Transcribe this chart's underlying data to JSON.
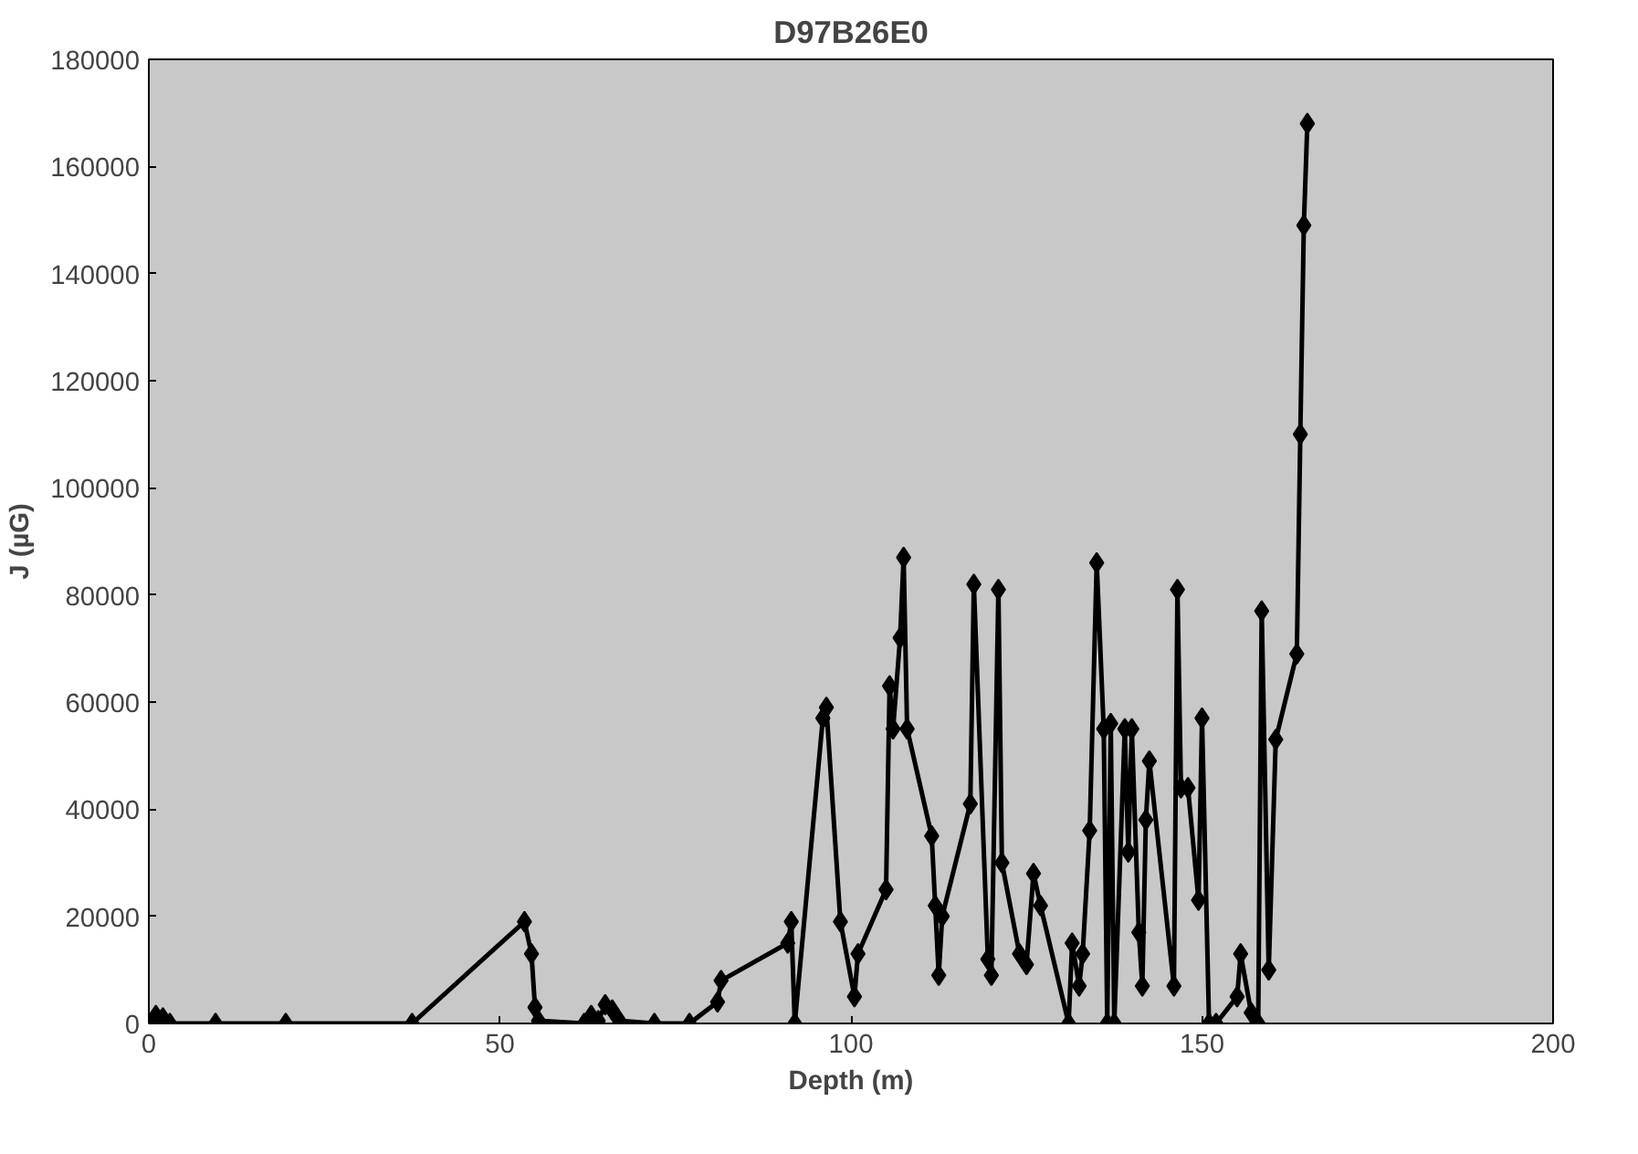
{
  "chart_data": {
    "type": "line",
    "title": "D97B26E0",
    "xlabel": "Depth (m)",
    "ylabel": "J (µG)",
    "x": [
      0.5,
      1,
      2,
      3,
      9.5,
      19.5,
      37.5,
      53.5,
      54.5,
      55,
      55.5,
      62,
      63,
      64,
      65,
      66,
      67,
      72,
      77,
      81,
      81.5,
      91,
      91.5,
      92,
      96,
      96.5,
      98.5,
      100.5,
      101,
      105,
      105.5,
      106,
      107,
      107.5,
      108,
      111.5,
      112,
      112.5,
      113,
      117,
      117.5,
      119.5,
      120,
      121,
      121.5,
      124,
      125,
      126,
      127,
      131,
      131.5,
      132.5,
      133,
      134,
      135,
      136,
      136.5,
      137,
      137.5,
      139,
      139.5,
      140,
      141,
      141.5,
      142,
      142.5,
      146,
      146.5,
      147,
      148,
      149.5,
      150,
      151,
      152,
      155,
      155.5,
      157,
      158,
      158.5,
      159.5,
      160.5,
      163.5,
      164,
      164.5,
      165
    ],
    "series": [
      {
        "color": "#000000",
        "values": [
          0,
          1500,
          1000,
          0,
          0,
          0,
          0,
          19000,
          13000,
          3000,
          500,
          0,
          1500,
          500,
          3500,
          2500,
          500,
          0,
          0,
          4000,
          8000,
          15000,
          19000,
          0,
          57000,
          59000,
          19000,
          5000,
          13000,
          25000,
          63000,
          55000,
          72000,
          87000,
          55000,
          35000,
          22000,
          9000,
          20000,
          41000,
          82000,
          12000,
          9000,
          81000,
          30000,
          13000,
          11000,
          28000,
          22000,
          0,
          15000,
          7000,
          13000,
          36000,
          86000,
          55000,
          0,
          56000,
          0,
          55000,
          32000,
          55000,
          17000,
          7000,
          38000,
          49000,
          7000,
          81000,
          44000,
          44000,
          23000,
          57000,
          0,
          0,
          5000,
          13000,
          2000,
          0,
          77000,
          10000,
          53000,
          69000,
          110000,
          149000,
          168000
        ]
      }
    ],
    "xlim": [
      0,
      200
    ],
    "xticks": [
      0,
      50,
      100,
      150,
      200
    ],
    "ylim": [
      0,
      180000
    ],
    "yticks": [
      0,
      20000,
      40000,
      60000,
      80000,
      100000,
      120000,
      140000,
      160000,
      180000
    ],
    "grid": false,
    "marker": "diamond",
    "line_style": "solid"
  }
}
